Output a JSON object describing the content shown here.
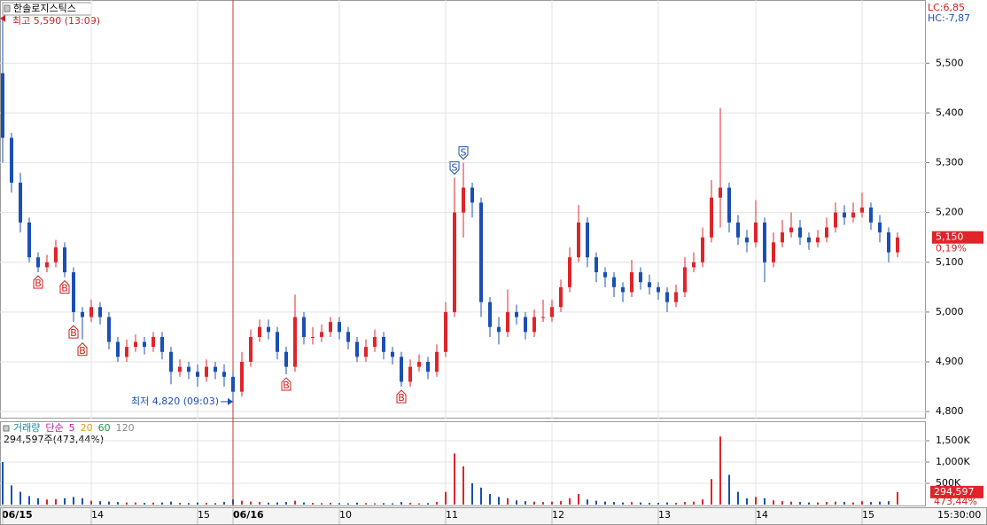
{
  "chart_data": [
    {
      "type": "candlestick",
      "title": "한솔로지스틱스",
      "high_label": "최고 5,590 (13:09)",
      "low_label": "최저 4,820 (09:03)",
      "stats": [
        "LC:6,85",
        "HC:-7,87"
      ],
      "categories": [
        "06/15",
        null,
        null,
        null,
        null,
        null,
        null,
        null,
        null,
        null,
        "14",
        null,
        null,
        null,
        null,
        null,
        null,
        null,
        null,
        null,
        null,
        null,
        "15",
        null,
        null,
        null,
        "06/16",
        null,
        null,
        null,
        null,
        null,
        null,
        null,
        null,
        null,
        null,
        null,
        "10",
        null,
        null,
        null,
        null,
        null,
        null,
        null,
        null,
        null,
        null,
        null,
        "11",
        null,
        null,
        null,
        null,
        null,
        null,
        null,
        null,
        null,
        null,
        null,
        "12",
        null,
        null,
        null,
        null,
        null,
        null,
        null,
        null,
        null,
        null,
        null,
        "13",
        null,
        null,
        null,
        null,
        null,
        null,
        null,
        null,
        null,
        null,
        "14",
        null,
        null,
        null,
        null,
        null,
        null,
        null,
        null,
        null,
        null,
        null,
        "15",
        null,
        null,
        null,
        null
      ],
      "ohlc": [
        [
          5480,
          5590,
          5300,
          5350
        ],
        [
          5350,
          5360,
          5240,
          5260
        ],
        [
          5260,
          5280,
          5160,
          5180
        ],
        [
          5180,
          5190,
          5100,
          5110
        ],
        [
          5110,
          5120,
          5080,
          5090
        ],
        [
          5090,
          5115,
          5080,
          5100
        ],
        [
          5100,
          5145,
          5090,
          5130
        ],
        [
          5130,
          5140,
          5070,
          5080
        ],
        [
          5080,
          5090,
          4980,
          5000
        ],
        [
          5000,
          5010,
          4945,
          4990
        ],
        [
          4990,
          5025,
          4980,
          5010
        ],
        [
          5010,
          5020,
          4975,
          4990
        ],
        [
          4990,
          5000,
          4925,
          4940
        ],
        [
          4940,
          4950,
          4900,
          4910
        ],
        [
          4910,
          4945,
          4900,
          4930
        ],
        [
          4930,
          4955,
          4920,
          4940
        ],
        [
          4940,
          4950,
          4915,
          4930
        ],
        [
          4930,
          4960,
          4920,
          4950
        ],
        [
          4950,
          4960,
          4905,
          4920
        ],
        [
          4920,
          4930,
          4855,
          4880
        ],
        [
          4880,
          4905,
          4870,
          4890
        ],
        [
          4890,
          4900,
          4865,
          4880
        ],
        [
          4880,
          4895,
          4850,
          4870
        ],
        [
          4870,
          4905,
          4860,
          4890
        ],
        [
          4890,
          4900,
          4865,
          4880
        ],
        [
          4880,
          4895,
          4850,
          4870
        ],
        [
          4870,
          4880,
          4820,
          4840
        ],
        [
          4840,
          4920,
          4830,
          4900
        ],
        [
          4900,
          4965,
          4890,
          4950
        ],
        [
          4950,
          4985,
          4940,
          4970
        ],
        [
          4970,
          4985,
          4945,
          4960
        ],
        [
          4960,
          4970,
          4905,
          4920
        ],
        [
          4920,
          4930,
          4875,
          4890
        ],
        [
          4890,
          5035,
          4880,
          4990
        ],
        [
          4990,
          5000,
          4935,
          4950
        ],
        [
          4950,
          4970,
          4935,
          4950
        ],
        [
          4950,
          4975,
          4940,
          4960
        ],
        [
          4960,
          4990,
          4950,
          4980
        ],
        [
          4980,
          4990,
          4945,
          4960
        ],
        [
          4960,
          4970,
          4925,
          4940
        ],
        [
          4940,
          4950,
          4900,
          4910
        ],
        [
          4910,
          4945,
          4900,
          4930
        ],
        [
          4930,
          4965,
          4920,
          4950
        ],
        [
          4950,
          4960,
          4905,
          4920
        ],
        [
          4920,
          4930,
          4895,
          4910
        ],
        [
          4910,
          4920,
          4850,
          4860
        ],
        [
          4860,
          4905,
          4850,
          4890
        ],
        [
          4890,
          4915,
          4880,
          4900
        ],
        [
          4900,
          4910,
          4865,
          4880
        ],
        [
          4880,
          4935,
          4870,
          4920
        ],
        [
          4920,
          5020,
          4910,
          5000
        ],
        [
          5000,
          5270,
          4990,
          5200
        ],
        [
          5200,
          5300,
          5150,
          5250
        ],
        [
          5250,
          5260,
          5190,
          5220
        ],
        [
          5220,
          5230,
          4990,
          5020
        ],
        [
          5020,
          5030,
          4950,
          4970
        ],
        [
          4970,
          4990,
          4935,
          4960
        ],
        [
          4960,
          5045,
          4950,
          5000
        ],
        [
          5000,
          5015,
          4975,
          4990
        ],
        [
          4990,
          5000,
          4945,
          4960
        ],
        [
          4960,
          5005,
          4950,
          4990
        ],
        [
          4990,
          5025,
          4980,
          4990
        ],
        [
          4990,
          5025,
          4980,
          5010
        ],
        [
          5010,
          5065,
          5000,
          5050
        ],
        [
          5050,
          5130,
          5040,
          5110
        ],
        [
          5110,
          5215,
          5100,
          5180
        ],
        [
          5180,
          5190,
          5090,
          5110
        ],
        [
          5110,
          5120,
          5060,
          5080
        ],
        [
          5080,
          5090,
          5050,
          5070
        ],
        [
          5070,
          5080,
          5030,
          5050
        ],
        [
          5050,
          5060,
          5020,
          5040
        ],
        [
          5040,
          5105,
          5030,
          5080
        ],
        [
          5080,
          5090,
          5045,
          5060
        ],
        [
          5060,
          5075,
          5035,
          5050
        ],
        [
          5050,
          5060,
          5025,
          5040
        ],
        [
          5040,
          5050,
          5000,
          5020
        ],
        [
          5020,
          5055,
          5010,
          5040
        ],
        [
          5040,
          5110,
          5030,
          5090
        ],
        [
          5090,
          5120,
          5080,
          5100
        ],
        [
          5100,
          5170,
          5090,
          5150
        ],
        [
          5150,
          5265,
          5140,
          5230
        ],
        [
          5230,
          5410,
          5170,
          5250
        ],
        [
          5250,
          5260,
          5160,
          5180
        ],
        [
          5180,
          5195,
          5135,
          5150
        ],
        [
          5150,
          5165,
          5120,
          5140
        ],
        [
          5140,
          5225,
          5130,
          5180
        ],
        [
          5180,
          5190,
          5060,
          5100
        ],
        [
          5100,
          5160,
          5090,
          5140
        ],
        [
          5140,
          5185,
          5130,
          5160
        ],
        [
          5160,
          5200,
          5150,
          5170
        ],
        [
          5170,
          5185,
          5135,
          5150
        ],
        [
          5150,
          5160,
          5125,
          5140
        ],
        [
          5140,
          5165,
          5130,
          5150
        ],
        [
          5150,
          5190,
          5140,
          5170
        ],
        [
          5170,
          5220,
          5160,
          5200
        ],
        [
          5200,
          5215,
          5175,
          5190
        ],
        [
          5190,
          5220,
          5180,
          5200
        ],
        [
          5200,
          5240,
          5190,
          5210
        ],
        [
          5210,
          5220,
          5165,
          5180
        ],
        [
          5180,
          5195,
          5140,
          5160
        ],
        [
          5160,
          5170,
          5100,
          5120
        ],
        [
          5120,
          5160,
          5110,
          5150
        ]
      ],
      "up_color": "#e0242a",
      "down_color": "#1a4fb5",
      "signals": [
        {
          "index": 4,
          "label": "B"
        },
        {
          "index": 7,
          "label": "B"
        },
        {
          "index": 8,
          "label": "B"
        },
        {
          "index": 9,
          "label": "B"
        },
        {
          "index": 32,
          "label": "B"
        },
        {
          "index": 45,
          "label": "B"
        },
        {
          "index": 51,
          "label": "S"
        },
        {
          "index": 52,
          "label": "S"
        }
      ],
      "last_price": {
        "value": 5150,
        "label": "5,150"
      },
      "change_label": "0,19%",
      "ylim": [
        4786,
        5627
      ],
      "yticks": [
        {
          "value": 4800,
          "label": "4,800"
        },
        {
          "value": 4900,
          "label": "4,900"
        },
        {
          "value": 5000,
          "label": "5,000"
        },
        {
          "value": 5100,
          "label": "5,100"
        },
        {
          "value": 5200,
          "label": "5,200"
        },
        {
          "value": 5300,
          "label": "5,300"
        },
        {
          "value": 5400,
          "label": "5,400"
        },
        {
          "value": 5500,
          "label": "5,500"
        }
      ],
      "grid": true,
      "time_label": "15:30:00"
    },
    {
      "type": "bar",
      "legend": [
        "거래량",
        "단순",
        "5",
        "20",
        "60",
        "120"
      ],
      "legend_colors": [
        "#1a8a9a",
        "#c0169a",
        "#c0169a",
        "#e0a010",
        "#1a9a3a",
        "#888888"
      ],
      "volume_label": "294,597주(473,44%)",
      "values": [
        1000,
        450,
        300,
        200,
        150,
        120,
        130,
        150,
        180,
        150,
        90,
        80,
        70,
        60,
        50,
        50,
        40,
        45,
        50,
        70,
        40,
        35,
        50,
        40,
        35,
        60,
        120,
        90,
        70,
        60,
        45,
        50,
        60,
        90,
        50,
        40,
        35,
        40,
        35,
        30,
        45,
        35,
        30,
        35,
        30,
        60,
        40,
        30,
        35,
        60,
        300,
        1200,
        900,
        500,
        400,
        250,
        180,
        150,
        100,
        80,
        70,
        60,
        70,
        80,
        150,
        250,
        120,
        90,
        70,
        60,
        50,
        60,
        50,
        40,
        40,
        50,
        40,
        60,
        70,
        120,
        600,
        1600,
        700,
        300,
        150,
        180,
        150,
        100,
        80,
        70,
        60,
        50,
        50,
        60,
        70,
        60,
        50,
        80,
        60,
        70,
        80,
        294.597
      ],
      "last_value": {
        "value": 294.597,
        "label": "294,597"
      },
      "ratio_label": "473,44%",
      "ylim": [
        0,
        1917
      ],
      "yticks": [
        {
          "value": 500,
          "label": "500K"
        },
        {
          "value": 1000,
          "label": "1,000K"
        },
        {
          "value": 1500,
          "label": "1,500K"
        }
      ],
      "grid": true
    }
  ]
}
